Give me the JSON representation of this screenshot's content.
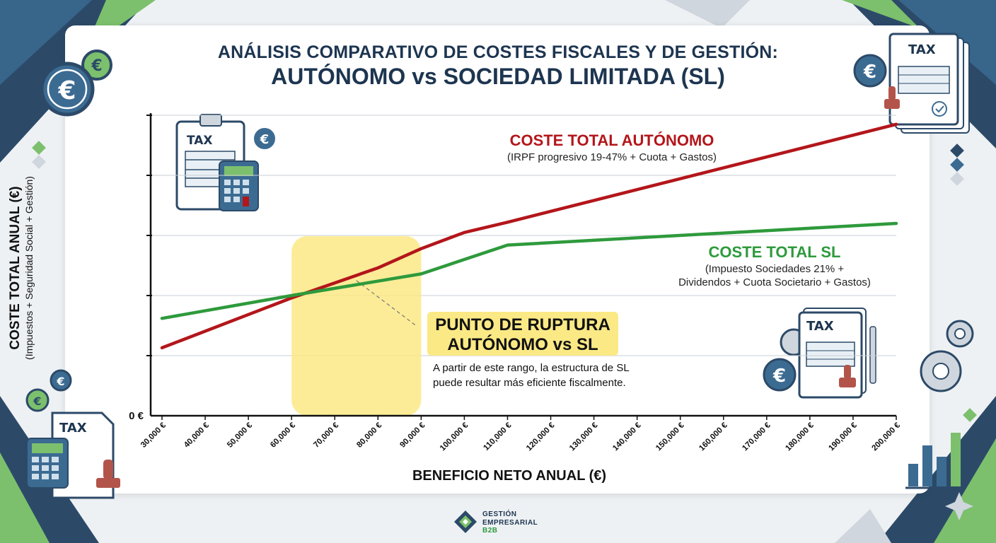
{
  "title": {
    "line1": "ANÁLISIS COMPARATIVO DE COSTES FISCALES Y DE GESTIÓN:",
    "line2": "AUTÓNOMO vs SOCIEDAD LIMITADA (SL)"
  },
  "chart_data": {
    "type": "line",
    "xlabel": "BENEFICIO NETO ANUAL (€)",
    "ylabel": "COSTE TOTAL ANUAL (€)",
    "ylabel_sub": "(Impuestos + Seguridad Social + Gestión)",
    "y_zero_label": "0 €",
    "x": [
      30000,
      40000,
      50000,
      60000,
      70000,
      80000,
      90000,
      100000,
      110000,
      120000,
      130000,
      140000,
      150000,
      160000,
      170000,
      180000,
      190000,
      200000
    ],
    "x_tick_labels": [
      "30,000 €",
      "40,000 €",
      "50,000 €",
      "60,000 €",
      "70,000 €",
      "80,000 €",
      "90,000 €",
      "100,000 €",
      "110,000 €",
      "120,000 €",
      "130,000 €",
      "140,000 €",
      "150,000 €",
      "160,000 €",
      "170,000 €",
      "180,000 €",
      "190,000 €",
      "200,000 €"
    ],
    "xlim": [
      30000,
      200000
    ],
    "ylim": [
      0,
      5
    ],
    "gridlines": [
      1,
      2,
      3,
      4,
      5
    ],
    "series": [
      {
        "name": "COSTE TOTAL AUTÓNOMO",
        "color": "#b3161b",
        "x": [
          30000,
          60000,
          80000,
          90000,
          100000,
          110000,
          200000
        ],
        "y": [
          1.13,
          1.96,
          2.46,
          2.78,
          3.05,
          3.22,
          4.85
        ]
      },
      {
        "name": "COSTE TOTAL SL",
        "color": "#2e9a3c",
        "x": [
          30000,
          60000,
          90000,
          110000,
          200000
        ],
        "y": [
          1.62,
          2.0,
          2.36,
          2.84,
          3.2
        ]
      }
    ],
    "highlight_range": [
      60000,
      90000
    ]
  },
  "annotations": {
    "autonomo_title": "COSTE TOTAL AUTÓNOMO",
    "autonomo_sub": "(IRPF progresivo 19-47% + Cuota + Gastos)",
    "sl_title": "COSTE TOTAL SL",
    "sl_sub1": "(Impuesto Sociedades 21% +",
    "sl_sub2": "Dividendos + Cuota Societario + Gastos)",
    "breakpoint_title1": "PUNTO DE RUPTURA",
    "breakpoint_title2": "AUTÓNOMO vs SL",
    "breakpoint_desc": "A partir de este rango, la estructura de SL puede resultar más eficiente fiscalmente."
  },
  "icons": {
    "tax_label": "TAX",
    "euro": "€"
  },
  "footer": {
    "line1": "GESTIÓN",
    "line2": "EMPRESARIAL",
    "line3": "B2B"
  }
}
